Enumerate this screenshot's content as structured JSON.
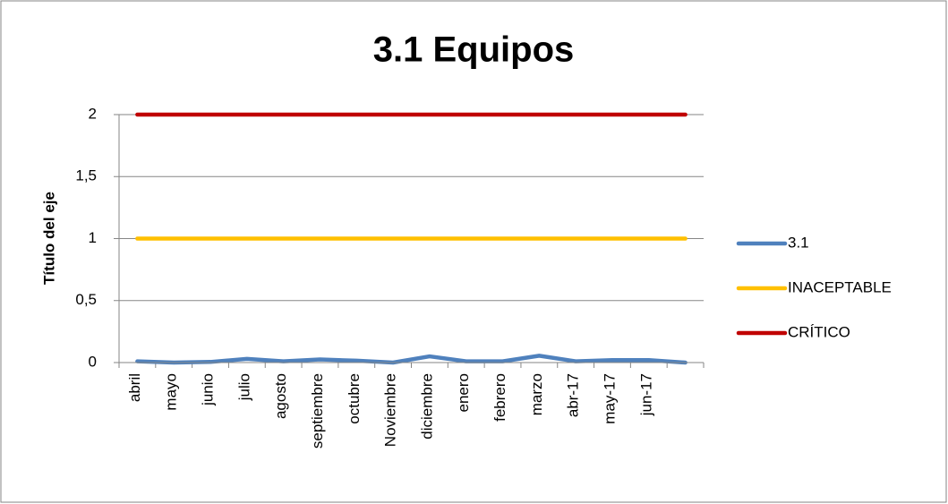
{
  "chart_data": {
    "type": "line",
    "title": "3.1 Equipos",
    "y_label": "Título del eje",
    "categories": [
      "abril",
      "mayo",
      "junio",
      "julio",
      "agosto",
      "septiembre",
      "octubre",
      "Noviembre",
      "diciembre",
      "enero",
      "febrero",
      "marzo",
      "abr-17",
      "may-17",
      "jun-17",
      null
    ],
    "series": [
      {
        "name": "3.1",
        "color": "#4f81bd",
        "values": [
          0.01,
          0,
          0.005,
          0.03,
          0.01,
          0.025,
          0.015,
          0,
          0.05,
          0.01,
          0.01,
          0.055,
          0.01,
          0.02,
          0.02,
          0
        ]
      },
      {
        "name": "INACEPTABLE",
        "color": "#ffc000",
        "values": [
          1,
          1,
          1,
          1,
          1,
          1,
          1,
          1,
          1,
          1,
          1,
          1,
          1,
          1,
          1,
          1
        ]
      },
      {
        "name": "CRÍTICO",
        "color": "#c00000",
        "values": [
          2,
          2,
          2,
          2,
          2,
          2,
          2,
          2,
          2,
          2,
          2,
          2,
          2,
          2,
          2,
          2
        ]
      }
    ],
    "ylim": [
      0,
      2
    ],
    "yticks": [
      0,
      {
        "value": 0.5,
        "label": "0,5"
      },
      1,
      {
        "value": 1.5,
        "label": "1,5"
      },
      2
    ],
    "grid": true,
    "legend": "right"
  }
}
